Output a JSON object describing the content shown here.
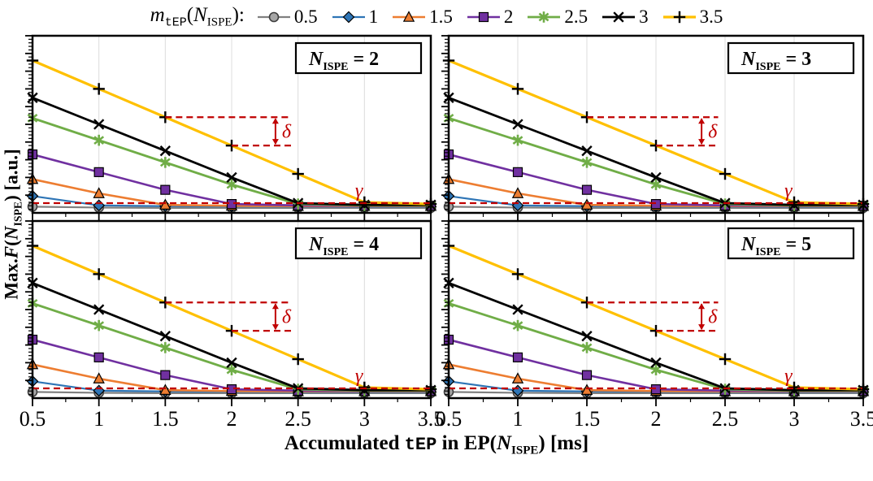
{
  "legend": {
    "prefix": {
      "m": "m",
      "sub_mono": "tEP",
      "open": "(",
      "N": "N",
      "N_sub": "ISPE",
      "close": "):"
    },
    "title_plain": "m_tEP(N_ISPE):"
  },
  "y_axis": {
    "pre": "Max.",
    "F": "F",
    "open": "(",
    "N": "N",
    "N_sub": "ISPE",
    "close": ") [a.u.]"
  },
  "x_axis": {
    "pre": "Accumulated ",
    "mono": "tEP",
    "mid": " in EP(",
    "N": "N",
    "N_sub": "ISPE",
    "close": ") [ms]"
  },
  "chart_data": {
    "type": "line",
    "title": "",
    "legend_title": "m_tEP(N_ISPE):",
    "legend_position": "top",
    "xlabel": "Accumulated tEP in EP(N_ISPE) [ms]",
    "ylabel": "Max. F(N_ISPE) [a.u.]",
    "xlim": [
      0.5,
      3.5
    ],
    "ylim": [
      0,
      10
    ],
    "y_ticks_unlabeled": true,
    "grid": "light vertical gridlines at x major ticks",
    "x": [
      0.5,
      1,
      1.5,
      2,
      2.5,
      3,
      3.5
    ],
    "x_tick_labels": [
      "0.5",
      "1",
      "1.5",
      "2",
      "2.5",
      "3",
      "3.5"
    ],
    "values_identical_across_panels": true,
    "panels": [
      {
        "n": "2"
      },
      {
        "n": "3"
      },
      {
        "n": "4"
      },
      {
        "n": "5"
      }
    ],
    "panel_title": {
      "symbol": "N",
      "subscript": "ISPE",
      "equals": "="
    },
    "series": [
      {
        "name": "0.5",
        "marker": "circle",
        "line_color": "#808080",
        "line_width": 2.2,
        "marker_fill": "#A6A6A6",
        "marker_stroke": "#3F3F3F",
        "values": [
          0.35,
          0.3,
          0.28,
          0.28,
          0.28,
          0.28,
          0.28
        ]
      },
      {
        "name": "1",
        "marker": "diamond",
        "line_color": "#2E75B6",
        "line_width": 2.2,
        "marker_fill": "#2E75B6",
        "marker_stroke": "#000000",
        "values": [
          0.95,
          0.42,
          0.38,
          0.36,
          0.35,
          0.35,
          0.35
        ]
      },
      {
        "name": "1.5",
        "marker": "triangle",
        "line_color": "#ED7D31",
        "line_width": 2.6,
        "marker_fill": "#ED7D31",
        "marker_stroke": "#000000",
        "values": [
          1.9,
          1.1,
          0.45,
          0.4,
          0.38,
          0.38,
          0.38
        ]
      },
      {
        "name": "2",
        "marker": "square",
        "line_color": "#7030A0",
        "line_width": 2.6,
        "marker_fill": "#7030A0",
        "marker_stroke": "#000000",
        "values": [
          3.3,
          2.3,
          1.3,
          0.5,
          0.42,
          0.4,
          0.4
        ]
      },
      {
        "name": "2.5",
        "marker": "asterisk",
        "line_color": "#70AD47",
        "line_width": 2.8,
        "marker_fill": "none",
        "marker_stroke": "#70AD47",
        "values": [
          5.35,
          4.1,
          2.85,
          1.6,
          0.5,
          0.42,
          0.42
        ]
      },
      {
        "name": "3",
        "marker": "x",
        "line_color": "#000000",
        "line_width": 2.8,
        "marker_fill": "none",
        "marker_stroke": "#000000",
        "values": [
          6.5,
          5.0,
          3.5,
          2.0,
          0.55,
          0.45,
          0.45
        ]
      },
      {
        "name": "3.5",
        "marker": "plus",
        "line_color": "#FFC000",
        "line_width": 3.2,
        "marker_fill": "none",
        "marker_stroke": "#000000",
        "values": [
          8.6,
          7.0,
          5.4,
          3.8,
          2.2,
          0.6,
          0.5
        ]
      }
    ],
    "annotations": {
      "color": "#C00000",
      "gamma": {
        "label": "γ",
        "y": 0.55,
        "label_x": 2.93
      },
      "delta": {
        "label": "δ",
        "upper_from_x": 1.5,
        "lower_from_x": 2.0,
        "lines_end_x": 2.45,
        "arrow_x": 2.33,
        "upper_y": 5.4,
        "lower_y": 3.8
      }
    },
    "colors": {
      "grid": "#DCDCDC",
      "axis": "#000000"
    }
  }
}
